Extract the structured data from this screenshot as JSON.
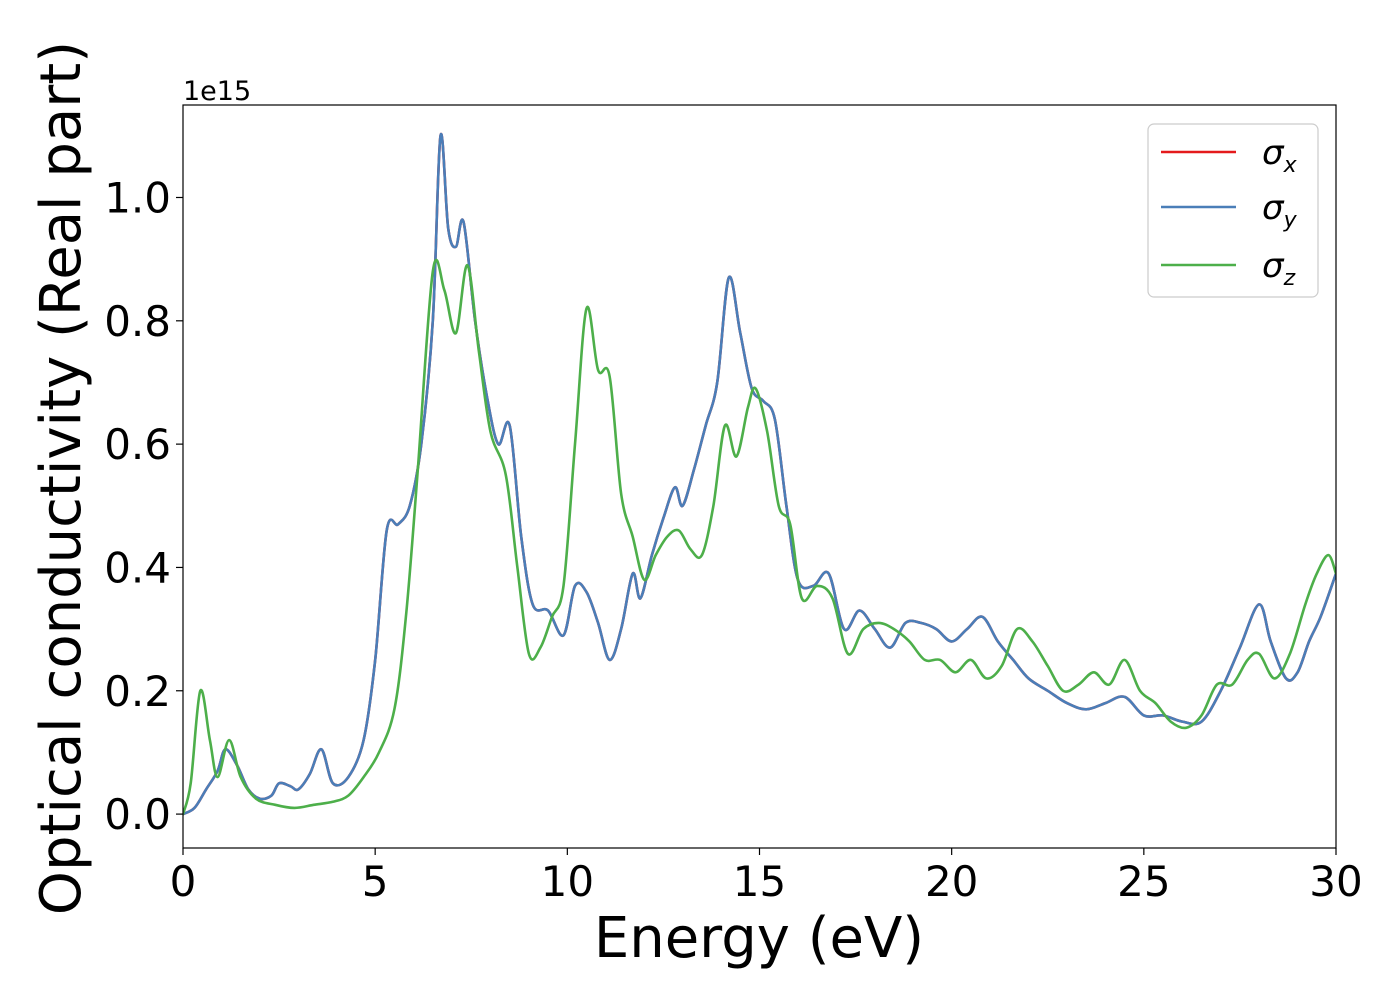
{
  "chart_data": {
    "type": "line",
    "xlabel": "Energy (eV)",
    "ylabel": "Optical conductivity (Real part)",
    "y_offset_label": "1e15",
    "xlim": [
      0,
      30
    ],
    "ylim": [
      -0.055,
      1.15
    ],
    "x_ticks": [
      0,
      5,
      10,
      15,
      20,
      25,
      30
    ],
    "x_tick_labels": [
      "0",
      "5",
      "10",
      "15",
      "20",
      "25",
      "30"
    ],
    "y_ticks": [
      0.0,
      0.2,
      0.4,
      0.6,
      0.8,
      1.0
    ],
    "y_tick_labels": [
      "0.0",
      "0.2",
      "0.4",
      "0.6",
      "0.8",
      "1.0"
    ],
    "legend_position": "upper-right",
    "grid": false,
    "series": [
      {
        "name": "σx",
        "legend_base": "σ",
        "legend_sub": "x",
        "color": "#e41a1c",
        "x": [
          0,
          0.3,
          0.6,
          0.9,
          1.1,
          1.4,
          1.7,
          2.0,
          2.3,
          2.5,
          2.8,
          3.0,
          3.3,
          3.6,
          3.9,
          4.3,
          4.7,
          5.0,
          5.3,
          5.6,
          5.9,
          6.2,
          6.5,
          6.7,
          6.9,
          7.1,
          7.3,
          7.6,
          7.9,
          8.2,
          8.5,
          8.8,
          9.1,
          9.5,
          9.9,
          10.2,
          10.5,
          10.8,
          11.1,
          11.4,
          11.7,
          11.9,
          12.2,
          12.5,
          12.8,
          13.0,
          13.3,
          13.6,
          13.9,
          14.2,
          14.5,
          14.8,
          15.1,
          15.4,
          15.7,
          16.0,
          16.4,
          16.8,
          17.2,
          17.6,
          18.0,
          18.4,
          18.8,
          19.2,
          19.6,
          20.0,
          20.4,
          20.8,
          21.2,
          21.6,
          22.0,
          22.5,
          23.0,
          23.5,
          24.0,
          24.5,
          25.0,
          25.5,
          26.0,
          26.5,
          27.0,
          27.5,
          28.0,
          28.3,
          28.7,
          29.0,
          29.3,
          29.6,
          30.0
        ],
        "y": [
          0.0,
          0.01,
          0.04,
          0.07,
          0.105,
          0.08,
          0.04,
          0.025,
          0.03,
          0.05,
          0.045,
          0.04,
          0.065,
          0.105,
          0.05,
          0.06,
          0.12,
          0.25,
          0.46,
          0.47,
          0.5,
          0.6,
          0.8,
          1.1,
          0.95,
          0.92,
          0.96,
          0.8,
          0.68,
          0.6,
          0.63,
          0.45,
          0.34,
          0.33,
          0.29,
          0.37,
          0.36,
          0.31,
          0.25,
          0.3,
          0.39,
          0.35,
          0.42,
          0.48,
          0.53,
          0.5,
          0.56,
          0.63,
          0.7,
          0.87,
          0.78,
          0.69,
          0.67,
          0.64,
          0.5,
          0.38,
          0.37,
          0.39,
          0.3,
          0.33,
          0.3,
          0.27,
          0.31,
          0.31,
          0.3,
          0.28,
          0.3,
          0.32,
          0.28,
          0.25,
          0.22,
          0.2,
          0.18,
          0.17,
          0.18,
          0.19,
          0.16,
          0.16,
          0.15,
          0.15,
          0.2,
          0.27,
          0.34,
          0.28,
          0.22,
          0.23,
          0.28,
          0.32,
          0.39
        ]
      },
      {
        "name": "σy",
        "legend_base": "σ",
        "legend_sub": "y",
        "color": "#4a7eb8",
        "x": [
          0,
          0.3,
          0.6,
          0.9,
          1.1,
          1.4,
          1.7,
          2.0,
          2.3,
          2.5,
          2.8,
          3.0,
          3.3,
          3.6,
          3.9,
          4.3,
          4.7,
          5.0,
          5.3,
          5.6,
          5.9,
          6.2,
          6.5,
          6.7,
          6.9,
          7.1,
          7.3,
          7.6,
          7.9,
          8.2,
          8.5,
          8.8,
          9.1,
          9.5,
          9.9,
          10.2,
          10.5,
          10.8,
          11.1,
          11.4,
          11.7,
          11.9,
          12.2,
          12.5,
          12.8,
          13.0,
          13.3,
          13.6,
          13.9,
          14.2,
          14.5,
          14.8,
          15.1,
          15.4,
          15.7,
          16.0,
          16.4,
          16.8,
          17.2,
          17.6,
          18.0,
          18.4,
          18.8,
          19.2,
          19.6,
          20.0,
          20.4,
          20.8,
          21.2,
          21.6,
          22.0,
          22.5,
          23.0,
          23.5,
          24.0,
          24.5,
          25.0,
          25.5,
          26.0,
          26.5,
          27.0,
          27.5,
          28.0,
          28.3,
          28.7,
          29.0,
          29.3,
          29.6,
          30.0
        ],
        "y": [
          0.0,
          0.01,
          0.04,
          0.07,
          0.105,
          0.08,
          0.04,
          0.025,
          0.03,
          0.05,
          0.045,
          0.04,
          0.065,
          0.105,
          0.05,
          0.06,
          0.12,
          0.25,
          0.46,
          0.47,
          0.5,
          0.6,
          0.8,
          1.1,
          0.95,
          0.92,
          0.96,
          0.8,
          0.68,
          0.6,
          0.63,
          0.45,
          0.34,
          0.33,
          0.29,
          0.37,
          0.36,
          0.31,
          0.25,
          0.3,
          0.39,
          0.35,
          0.42,
          0.48,
          0.53,
          0.5,
          0.56,
          0.63,
          0.7,
          0.87,
          0.78,
          0.69,
          0.67,
          0.64,
          0.5,
          0.38,
          0.37,
          0.39,
          0.3,
          0.33,
          0.3,
          0.27,
          0.31,
          0.31,
          0.3,
          0.28,
          0.3,
          0.32,
          0.28,
          0.25,
          0.22,
          0.2,
          0.18,
          0.17,
          0.18,
          0.19,
          0.16,
          0.16,
          0.15,
          0.15,
          0.2,
          0.27,
          0.34,
          0.28,
          0.22,
          0.23,
          0.28,
          0.32,
          0.39
        ]
      },
      {
        "name": "σz",
        "legend_base": "σ",
        "legend_sub": "z",
        "color": "#4daf4a",
        "x": [
          0,
          0.2,
          0.45,
          0.7,
          0.9,
          1.2,
          1.5,
          1.9,
          2.4,
          2.9,
          3.4,
          3.9,
          4.3,
          4.7,
          5.1,
          5.5,
          5.8,
          6.1,
          6.5,
          6.8,
          7.1,
          7.4,
          7.7,
          8.0,
          8.4,
          8.7,
          9.0,
          9.3,
          9.6,
          9.9,
          10.2,
          10.5,
          10.8,
          11.1,
          11.4,
          11.7,
          12.0,
          12.3,
          12.6,
          12.9,
          13.2,
          13.5,
          13.8,
          14.1,
          14.4,
          14.7,
          14.9,
          15.2,
          15.5,
          15.8,
          16.1,
          16.5,
          16.9,
          17.3,
          17.7,
          18.1,
          18.5,
          18.9,
          19.3,
          19.7,
          20.1,
          20.5,
          20.9,
          21.3,
          21.7,
          22.1,
          22.5,
          22.9,
          23.3,
          23.7,
          24.1,
          24.5,
          24.9,
          25.3,
          25.7,
          26.1,
          26.5,
          26.9,
          27.3,
          27.7,
          28.0,
          28.4,
          28.8,
          29.2,
          29.5,
          29.8,
          30.0
        ],
        "y": [
          0.0,
          0.05,
          0.2,
          0.12,
          0.06,
          0.12,
          0.06,
          0.025,
          0.015,
          0.01,
          0.015,
          0.02,
          0.03,
          0.06,
          0.1,
          0.17,
          0.32,
          0.55,
          0.88,
          0.85,
          0.78,
          0.89,
          0.75,
          0.62,
          0.55,
          0.4,
          0.26,
          0.27,
          0.32,
          0.37,
          0.6,
          0.82,
          0.72,
          0.71,
          0.52,
          0.45,
          0.38,
          0.42,
          0.45,
          0.46,
          0.43,
          0.42,
          0.5,
          0.63,
          0.58,
          0.66,
          0.69,
          0.62,
          0.5,
          0.47,
          0.35,
          0.37,
          0.35,
          0.26,
          0.3,
          0.31,
          0.3,
          0.28,
          0.25,
          0.25,
          0.23,
          0.25,
          0.22,
          0.24,
          0.3,
          0.28,
          0.24,
          0.2,
          0.21,
          0.23,
          0.21,
          0.25,
          0.2,
          0.18,
          0.15,
          0.14,
          0.16,
          0.21,
          0.21,
          0.25,
          0.26,
          0.22,
          0.26,
          0.34,
          0.39,
          0.42,
          0.39
        ]
      }
    ]
  }
}
